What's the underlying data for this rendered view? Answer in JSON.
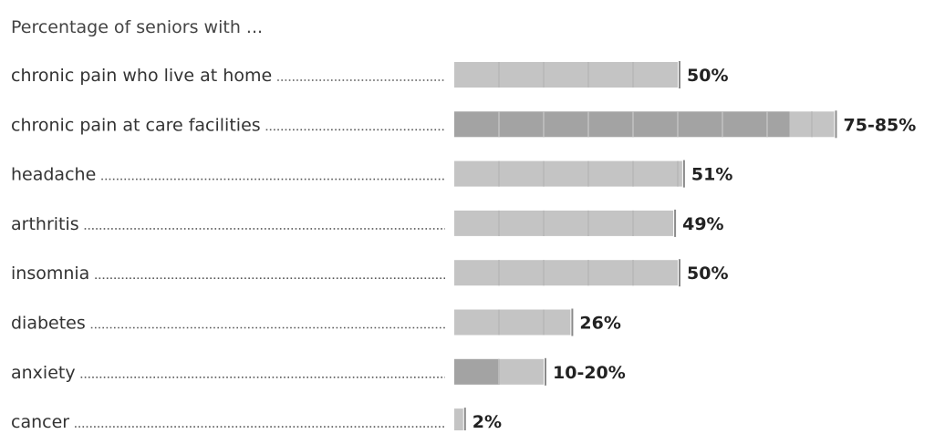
{
  "chart_data": {
    "type": "bar",
    "orientation": "horizontal",
    "title": "Percentage of seniors with ...",
    "xlim": [
      0,
      100
    ],
    "grid": false,
    "legend": "none",
    "categories": [
      "chronic pain who live at home",
      "chronic pain at care facilities",
      "headache",
      "arthritis",
      "insomnia",
      "diabetes",
      "anxiety",
      "cancer"
    ],
    "value_labels": [
      "50%",
      "75-85%",
      "51%",
      "49%",
      "50%",
      "26%",
      "10-20%",
      "2%"
    ],
    "series": [
      {
        "values": [
          50,
          85,
          51,
          49,
          50,
          26,
          20,
          2
        ],
        "ranges": [
          [
            50,
            50
          ],
          [
            75,
            85
          ],
          [
            51,
            51
          ],
          [
            49,
            49
          ],
          [
            50,
            50
          ],
          [
            26,
            26
          ],
          [
            10,
            20
          ],
          [
            2,
            2
          ]
        ]
      }
    ],
    "colors": {
      "bar": "#c4c4c4",
      "bar_range_low": "#a3a3a3",
      "segment_line": "#bababa",
      "leader_dots": "#555555",
      "text": "#333333",
      "value_text": "#222222"
    }
  }
}
